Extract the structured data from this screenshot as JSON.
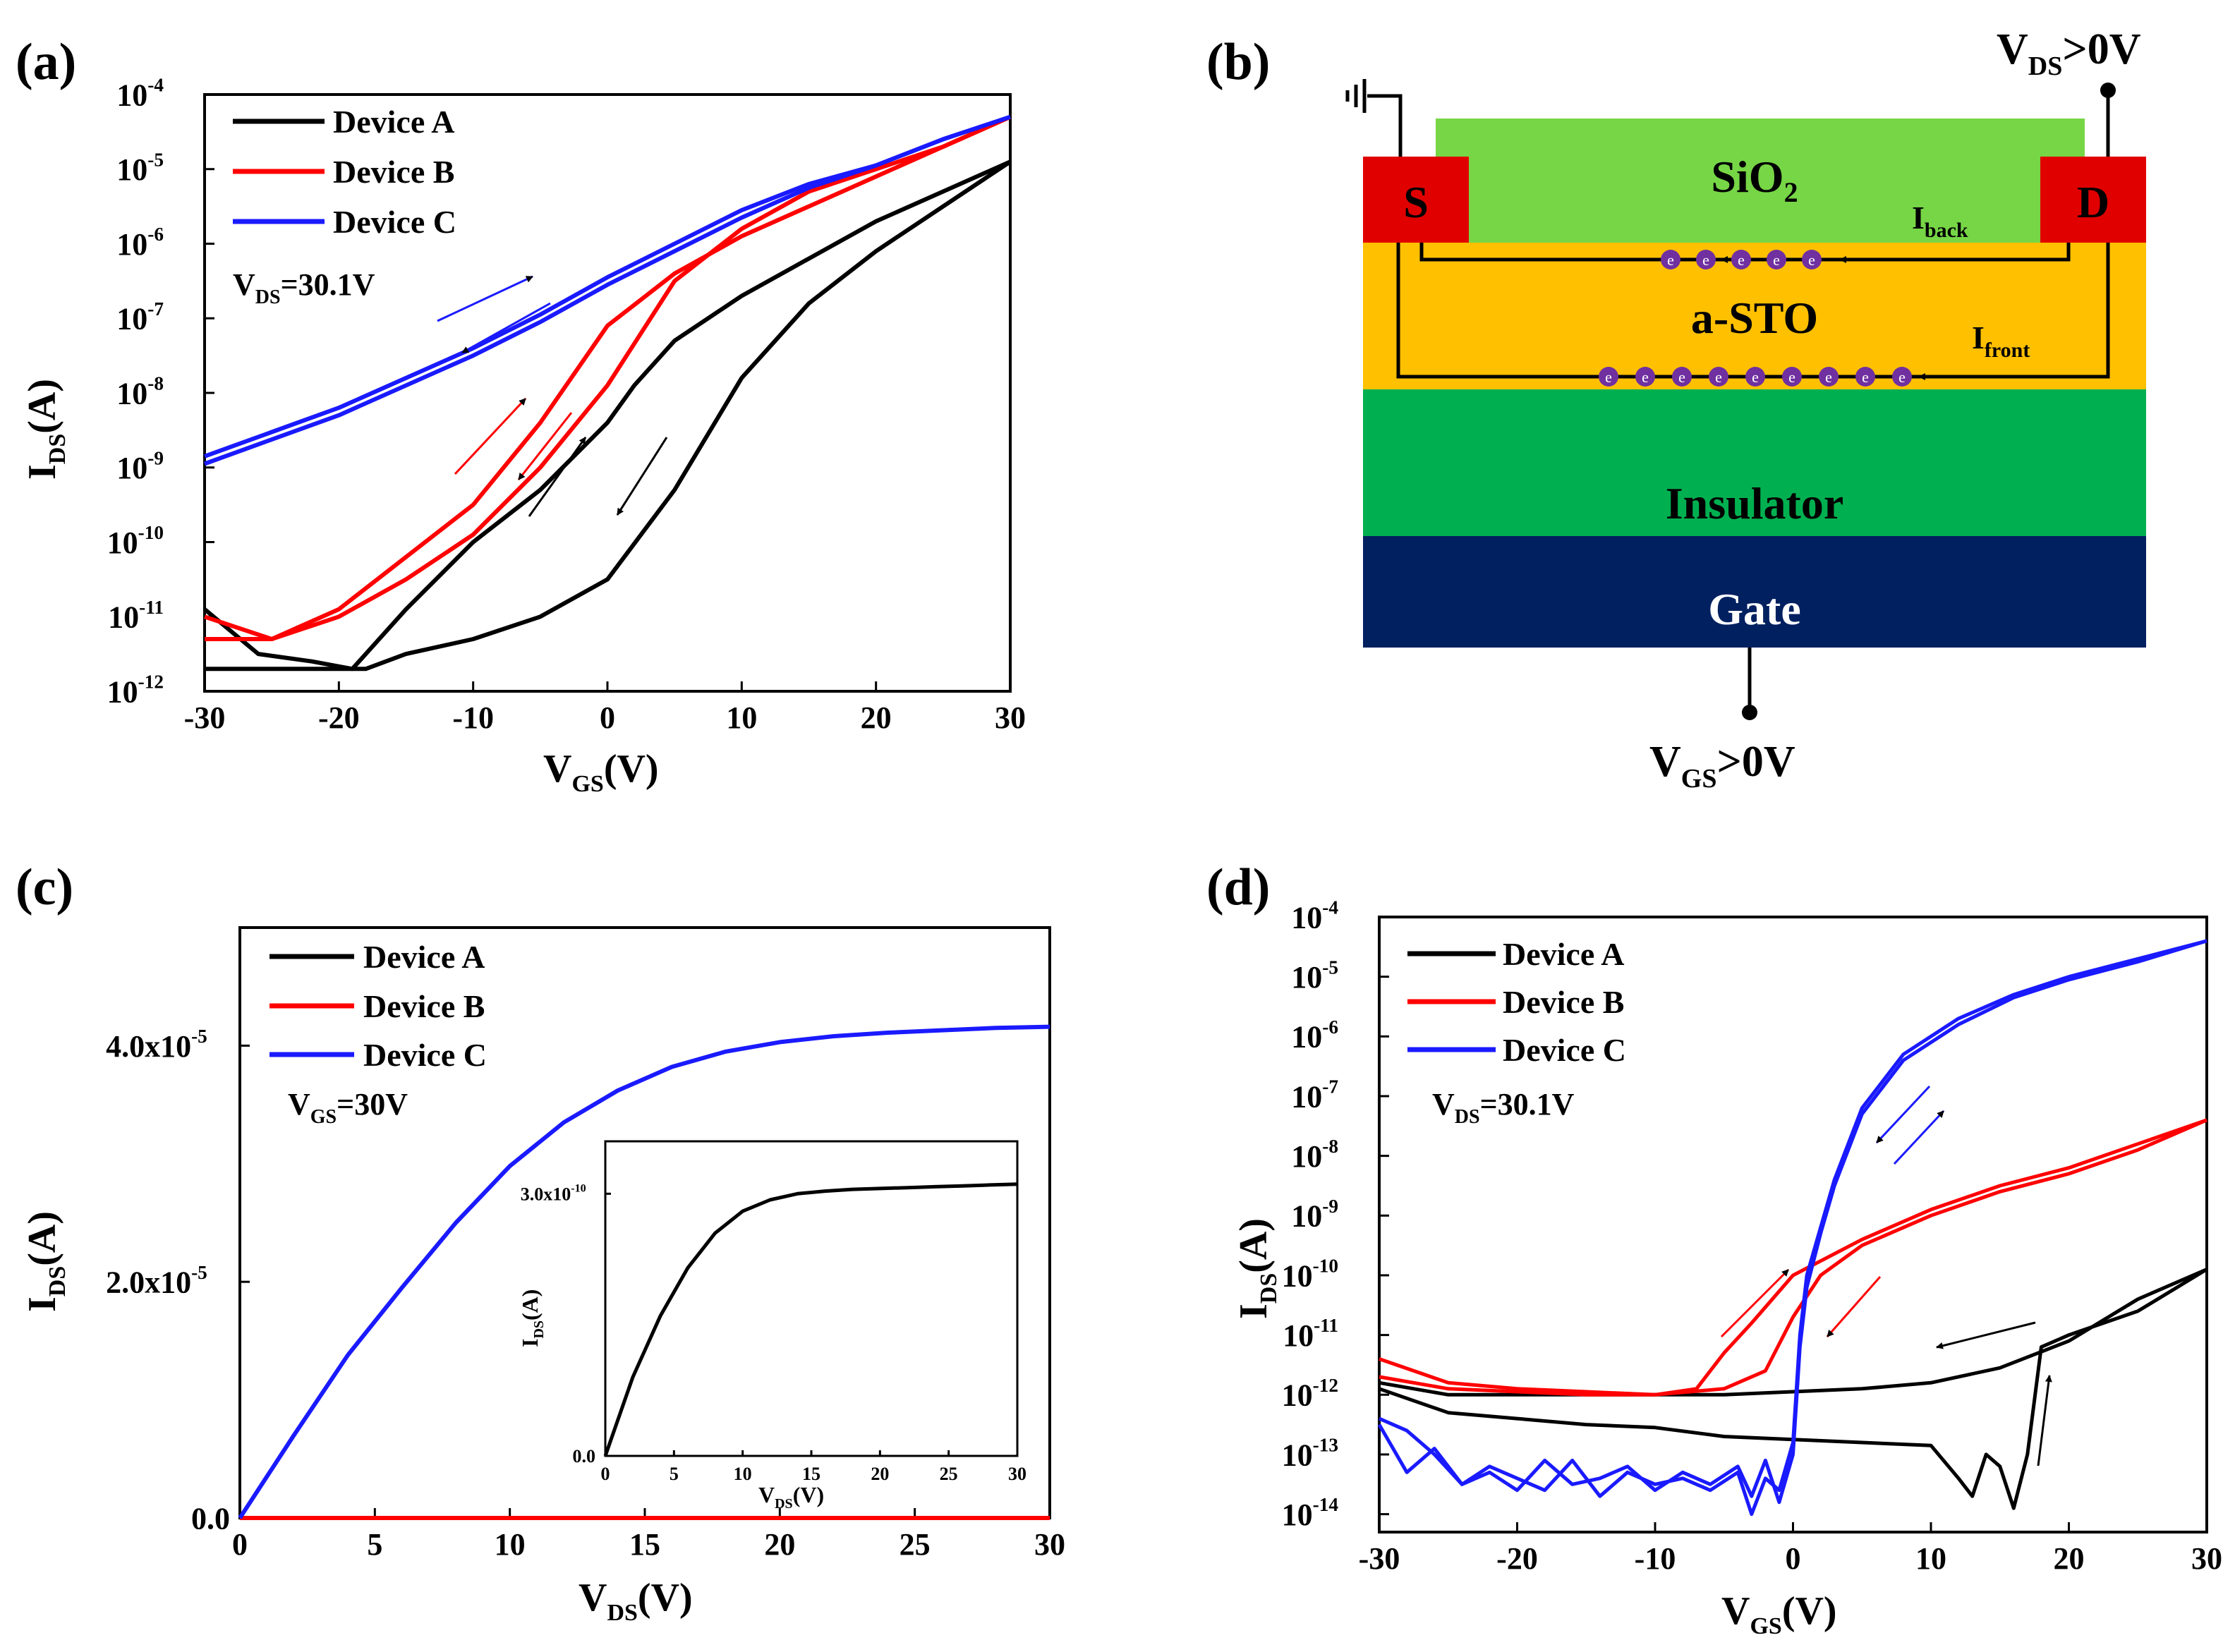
{
  "panels": {
    "a": {
      "label": "(a)",
      "ylabel_main": "I",
      "ylabel_sub": "DS",
      "ylabel_unit": "(A)",
      "xlabel_main": "V",
      "xlabel_sub": "GS",
      "xlabel_unit": "(V)",
      "annotation_main": "V",
      "annotation_sub": "DS",
      "annotation_rest": "=30.1V",
      "legend": [
        "Device A",
        "Device B",
        "Device C"
      ]
    },
    "b": {
      "label": "(b)",
      "vds_main": "V",
      "vds_sub": "DS",
      "vds_rest": ">0V",
      "vgs_main": "V",
      "vgs_sub": "GS",
      "vgs_rest": ">0V",
      "source": "S",
      "drain": "D",
      "sio2_main": "SiO",
      "sio2_sub": "2",
      "channel": "a-STO",
      "insulator": "Insulator",
      "gate": "Gate",
      "iback_main": "I",
      "iback_sub": "back",
      "ifront_main": "I",
      "ifront_sub": "front",
      "electron": "e"
    },
    "c": {
      "label": "(c)",
      "ylabel_main": "I",
      "ylabel_sub": "DS",
      "ylabel_unit": "(A)",
      "xlabel_main": "V",
      "xlabel_sub": "DS",
      "xlabel_unit": "(V)",
      "annotation_main": "V",
      "annotation_sub": "GS",
      "annotation_rest": "=30V",
      "legend": [
        "Device A",
        "Device B",
        "Device C"
      ],
      "inset_ylabel_main": "I",
      "inset_ylabel_sub": "DS",
      "inset_ylabel_unit": "(A)",
      "inset_xlabel_main": "V",
      "inset_xlabel_sub": "DS",
      "inset_xlabel_unit": "(V)"
    },
    "d": {
      "label": "(d)",
      "ylabel_main": "I",
      "ylabel_sub": "DS",
      "ylabel_unit": "(A)",
      "xlabel_main": "V",
      "xlabel_sub": "GS",
      "xlabel_unit": "(V)",
      "annotation_main": "V",
      "annotation_sub": "DS",
      "annotation_rest": "=30.1V",
      "legend": [
        "Device A",
        "Device B",
        "Device C"
      ]
    }
  },
  "colors": {
    "device_a": "#000000",
    "device_b": "#ff0000",
    "device_c": "#1a1aff",
    "sio2": "#77d646",
    "channel": "#ffc000",
    "insulator": "#00b050",
    "gate": "#002060",
    "contact": "#e00000",
    "electron": "#7030a0"
  },
  "chart_data": [
    {
      "panel": "a",
      "type": "line",
      "log_y": true,
      "xlim": [
        -30,
        30
      ],
      "ylim_exp": [
        -12,
        -4
      ],
      "xticks": [
        -30,
        -20,
        -10,
        0,
        10,
        20,
        30
      ],
      "ytick_exps": [
        -12,
        -11,
        -10,
        -9,
        -8,
        -7,
        -6,
        -5,
        -4
      ],
      "series": [
        {
          "name": "Device A",
          "color": "#000000",
          "x": [
            -30,
            -25,
            -20,
            -18,
            -15,
            -10,
            -5,
            0,
            5,
            10,
            15,
            20,
            25,
            30
          ],
          "log_i": [
            -11.7,
            -11.7,
            -11.7,
            -11.7,
            -11.5,
            -11.3,
            -11.0,
            -10.5,
            -9.3,
            -7.8,
            -6.8,
            -6.1,
            -5.5,
            -4.9
          ]
        },
        {
          "name": "Device A",
          "color": "#000000",
          "x": [
            30,
            25,
            20,
            15,
            10,
            5,
            2,
            0,
            -5,
            -10,
            -15,
            -19,
            -22,
            -26,
            -30
          ],
          "log_i": [
            -4.9,
            -5.3,
            -5.7,
            -6.2,
            -6.7,
            -7.3,
            -7.9,
            -8.4,
            -9.3,
            -10.0,
            -10.9,
            -11.7,
            -11.6,
            -11.5,
            -10.9
          ]
        },
        {
          "name": "Device B",
          "color": "#ff0000",
          "x": [
            -30,
            -25,
            -20,
            -15,
            -10,
            -5,
            0,
            5,
            10,
            15,
            20,
            25,
            30
          ],
          "log_i": [
            -11.3,
            -11.3,
            -11.0,
            -10.5,
            -9.9,
            -9.0,
            -7.9,
            -6.5,
            -5.8,
            -5.3,
            -5.0,
            -4.7,
            -4.3
          ]
        },
        {
          "name": "Device B",
          "color": "#ff0000",
          "x": [
            30,
            25,
            20,
            15,
            10,
            5,
            0,
            -5,
            -10,
            -15,
            -20,
            -25,
            -30
          ],
          "log_i": [
            -4.3,
            -4.7,
            -5.1,
            -5.5,
            -5.9,
            -6.4,
            -7.1,
            -8.4,
            -9.5,
            -10.2,
            -10.9,
            -11.3,
            -11.0
          ]
        },
        {
          "name": "Device C",
          "color": "#1a1aff",
          "x": [
            -30,
            -20,
            -10,
            -5,
            0,
            5,
            10,
            15,
            20,
            25,
            30
          ],
          "log_i": [
            -8.85,
            -8.2,
            -7.4,
            -6.95,
            -6.45,
            -6.0,
            -5.55,
            -5.2,
            -4.95,
            -4.6,
            -4.3
          ]
        },
        {
          "name": "Device C",
          "color": "#1a1aff",
          "x": [
            30,
            25,
            20,
            15,
            10,
            5,
            0,
            -5,
            -10,
            -20,
            -30
          ],
          "log_i": [
            -4.3,
            -4.6,
            -4.95,
            -5.25,
            -5.65,
            -6.1,
            -6.55,
            -7.05,
            -7.5,
            -8.3,
            -8.95
          ]
        }
      ]
    },
    {
      "panel": "c",
      "type": "line",
      "xlim": [
        0,
        30
      ],
      "ylim": [
        0,
        5e-05
      ],
      "xticks": [
        0,
        5,
        10,
        15,
        20,
        25,
        30
      ],
      "yticks": [
        0,
        2e-05,
        4e-05
      ],
      "ytick_labels": [
        "0.0",
        "2.0x10",
        "4.0x10"
      ],
      "ytick_sup": [
        "",
        "-5",
        "-5"
      ],
      "series": [
        {
          "name": "Device A",
          "color": "#000000",
          "x": [
            0,
            30
          ],
          "y": [
            0,
            0
          ]
        },
        {
          "name": "Device B",
          "color": "#ff0000",
          "x": [
            0,
            30
          ],
          "y": [
            0,
            0
          ]
        },
        {
          "name": "Device C",
          "color": "#1a1aff",
          "x": [
            0,
            2,
            4,
            6,
            8,
            10,
            12,
            14,
            16,
            18,
            20,
            22,
            24,
            26,
            28,
            30
          ],
          "y": [
            0,
            7e-06,
            1.38e-05,
            1.95e-05,
            2.5e-05,
            2.98e-05,
            3.35e-05,
            3.62e-05,
            3.82e-05,
            3.95e-05,
            4.03e-05,
            4.08e-05,
            4.11e-05,
            4.13e-05,
            4.15e-05,
            4.16e-05
          ]
        }
      ],
      "inset": {
        "xlim": [
          0,
          30
        ],
        "ylim": [
          0,
          3.6e-10
        ],
        "xticks": [
          0,
          5,
          10,
          15,
          20,
          25,
          30
        ],
        "yticks": [
          0,
          3e-10
        ],
        "ytick_labels": [
          "0.0",
          "3.0x10"
        ],
        "ytick_sup": [
          "",
          "-10"
        ],
        "series": [
          {
            "name": "Device A",
            "color": "#000000",
            "x": [
              0,
              2,
              4,
              6,
              8,
              10,
              12,
              14,
              16,
              18,
              20,
              22,
              24,
              26,
              28,
              30
            ],
            "y": [
              0,
              9e-11,
              1.6e-10,
              2.15e-10,
              2.55e-10,
              2.8e-10,
              2.93e-10,
              3e-10,
              3.03e-10,
              3.05e-10,
              3.06e-10,
              3.07e-10,
              3.08e-10,
              3.09e-10,
              3.1e-10,
              3.11e-10
            ]
          }
        ]
      }
    },
    {
      "panel": "d",
      "type": "line",
      "log_y": true,
      "xlim": [
        -30,
        30
      ],
      "ylim_exp": [
        -14.3,
        -4
      ],
      "xticks": [
        -30,
        -20,
        -10,
        0,
        10,
        20,
        30
      ],
      "ytick_exps": [
        -14,
        -13,
        -12,
        -11,
        -10,
        -9,
        -8,
        -7,
        -6,
        -5,
        -4
      ],
      "series": [
        {
          "name": "Device A",
          "color": "#000000",
          "x": [
            -30,
            -25,
            -20,
            -15,
            -10,
            -5,
            0,
            5,
            10,
            12,
            13,
            14,
            15,
            16,
            17,
            18,
            20,
            25,
            30
          ],
          "log_i": [
            -11.9,
            -12.3,
            -12.4,
            -12.5,
            -12.55,
            -12.7,
            -12.75,
            -12.8,
            -12.85,
            -13.4,
            -13.7,
            -13.0,
            -13.2,
            -13.9,
            -13.0,
            -11.2,
            -11.0,
            -10.6,
            -9.9
          ]
        },
        {
          "name": "Device A",
          "color": "#000000",
          "x": [
            30,
            25,
            20,
            15,
            10,
            5,
            0,
            -5,
            -10,
            -15,
            -20,
            -25,
            -30
          ],
          "log_i": [
            -9.9,
            -10.4,
            -11.1,
            -11.55,
            -11.8,
            -11.9,
            -11.95,
            -12.0,
            -12.0,
            -12.0,
            -12.0,
            -12.0,
            -11.8
          ]
        },
        {
          "name": "Device B",
          "color": "#ff0000",
          "x": [
            -30,
            -25,
            -20,
            -15,
            -10,
            -7,
            -5,
            -3,
            0,
            5,
            10,
            15,
            20,
            25,
            30
          ],
          "log_i": [
            -11.7,
            -11.9,
            -11.95,
            -12.0,
            -12.0,
            -11.9,
            -11.3,
            -10.8,
            -10.0,
            -9.4,
            -8.9,
            -8.5,
            -8.2,
            -7.8,
            -7.4
          ]
        },
        {
          "name": "Device B",
          "color": "#ff0000",
          "x": [
            30,
            25,
            20,
            15,
            10,
            5,
            2,
            0,
            -2,
            -5,
            -10,
            -15,
            -20,
            -25,
            -30
          ],
          "log_i": [
            -7.4,
            -7.9,
            -8.3,
            -8.6,
            -9.0,
            -9.5,
            -10.0,
            -10.7,
            -11.6,
            -11.9,
            -12.0,
            -11.95,
            -11.9,
            -11.8,
            -11.4
          ]
        },
        {
          "name": "Device C",
          "color": "#1a1aff",
          "x": [
            -30,
            -28,
            -26,
            -24,
            -22,
            -20,
            -18,
            -16,
            -14,
            -12,
            -10,
            -8,
            -6,
            -4,
            -3,
            -2,
            -1,
            0,
            0.5,
            1,
            2,
            3,
            5,
            8,
            12,
            16,
            20,
            25,
            30
          ],
          "log_i": [
            -12.5,
            -13.3,
            -12.9,
            -13.5,
            -13.2,
            -13.4,
            -13.6,
            -13.1,
            -13.7,
            -13.3,
            -13.5,
            -13.4,
            -13.6,
            -13.3,
            -14.0,
            -13.4,
            -13.6,
            -12.8,
            -11.0,
            -10.0,
            -9.2,
            -8.4,
            -7.2,
            -6.3,
            -5.7,
            -5.3,
            -5.0,
            -4.7,
            -4.4
          ]
        },
        {
          "name": "Device C",
          "color": "#1a1aff",
          "x": [
            30,
            25,
            20,
            16,
            12,
            8,
            5,
            3,
            2,
            1,
            0.5,
            0,
            -1,
            -2,
            -3,
            -4,
            -6,
            -8,
            -10,
            -12,
            -14,
            -16,
            -18,
            -20,
            -22,
            -24,
            -26,
            -28,
            -30
          ],
          "log_i": [
            -4.4,
            -4.75,
            -5.05,
            -5.35,
            -5.8,
            -6.4,
            -7.3,
            -8.5,
            -9.3,
            -10.2,
            -11.2,
            -13.0,
            -13.8,
            -13.1,
            -13.7,
            -13.2,
            -13.5,
            -13.3,
            -13.6,
            -13.2,
            -13.4,
            -13.5,
            -13.1,
            -13.6,
            -13.3,
            -13.5,
            -13.0,
            -12.6,
            -12.4
          ]
        }
      ]
    }
  ]
}
